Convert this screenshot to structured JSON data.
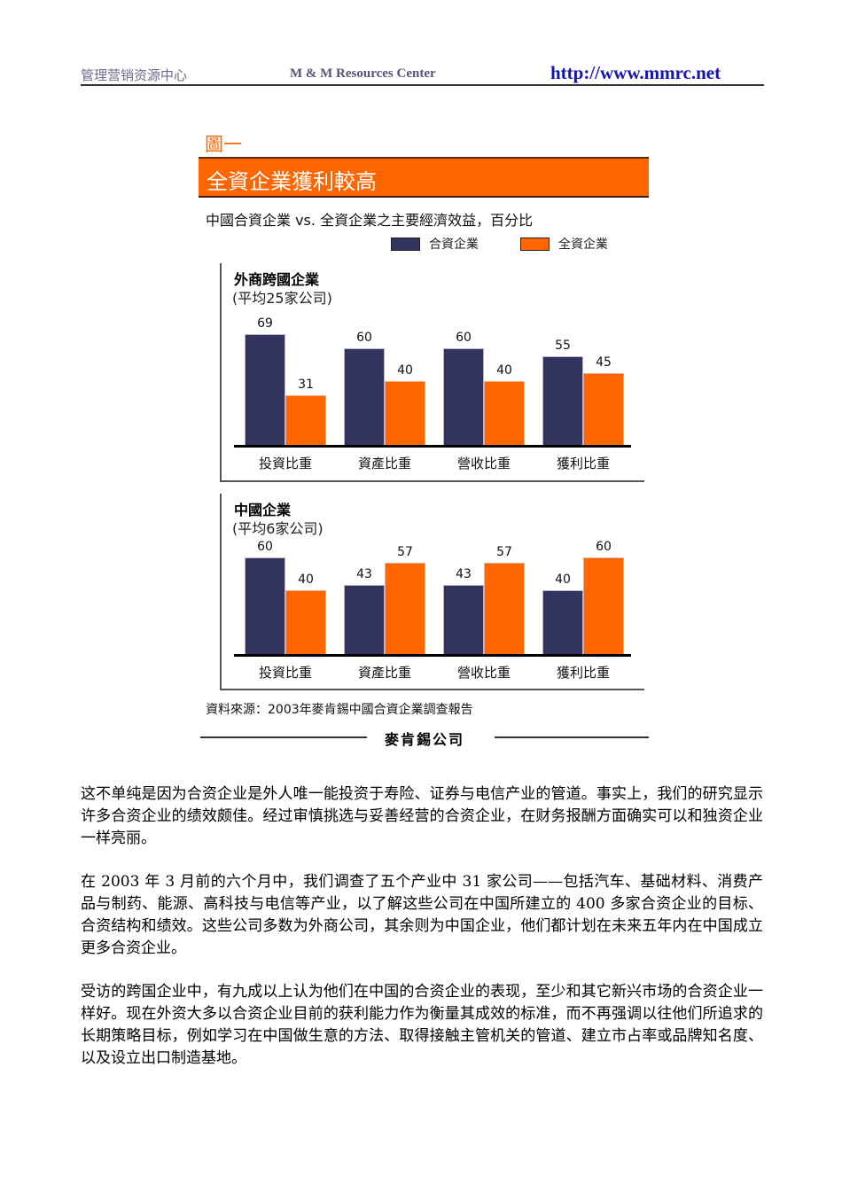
{
  "header": {
    "left": "管理营销资源中心",
    "center": "M & M Resources Center",
    "right": "http://www.mmrc.net"
  },
  "figure": {
    "label": "圖一",
    "banner": "全資企業獲利較高",
    "subtitle": "中國合資企業 vs. 全資企業之主要經濟效益，百分比",
    "legend": [
      {
        "label": "合資企業",
        "color": "#33335f"
      },
      {
        "label": "全資企業",
        "color": "#ff6600"
      }
    ],
    "source": "資料來源：2003年麥肯錫中國合資企業調查報告",
    "signature": "麥肯錫公司"
  },
  "chart_data": [
    {
      "type": "bar",
      "title": "外商跨國企業",
      "subtitle": "(平均25家公司)",
      "categories": [
        "投資比重",
        "資產比重",
        "營收比重",
        "獲利比重"
      ],
      "series": [
        {
          "name": "合資企業",
          "values": [
            69,
            60,
            60,
            55
          ]
        },
        {
          "name": "全資企業",
          "values": [
            31,
            40,
            40,
            45
          ]
        }
      ],
      "xlabel": "",
      "ylabel": "百分比",
      "ylim": [
        0,
        100
      ],
      "grid": false,
      "legend_position": "top-right"
    },
    {
      "type": "bar",
      "title": "中國企業",
      "subtitle": "(平均6家公司)",
      "categories": [
        "投資比重",
        "資產比重",
        "營收比重",
        "獲利比重"
      ],
      "series": [
        {
          "name": "合資企業",
          "values": [
            60,
            43,
            43,
            40
          ]
        },
        {
          "name": "全資企業",
          "values": [
            40,
            57,
            57,
            60
          ]
        }
      ],
      "xlabel": "",
      "ylabel": "百分比",
      "ylim": [
        0,
        100
      ],
      "grid": false,
      "legend_position": "top-right"
    }
  ],
  "paragraphs": [
    "这不单纯是因为合资企业是外人唯一能投资于寿险、证券与电信产业的管道。事实上，我们的研究显示许多合资企业的绩效颇佳。经过审慎挑选与妥善经营的合资企业，在财务报酬方面确实可以和独资企业一样亮丽。",
    "在 2003 年 3 月前的六个月中，我们调查了五个产业中 31 家公司——包括汽车、基础材料、消费产品与制药、能源、高科技与电信等产业，以了解这些公司在中国所建立的 400 多家合资企业的目标、合资结构和绩效。这些公司多数为外商公司，其余则为中国企业，他们都计划在未来五年内在中国成立更多合资企业。",
    "受访的跨国企业中，有九成以上认为他们在中国的合资企业的表现，至少和其它新兴市场的合资企业一样好。现在外资大多以合资企业目前的获利能力作为衡量其成效的标准，而不再强调以往他们所追求的长期策略目标，例如学习在中国做生意的方法、取得接触主管机关的管道、建立市占率或品牌知名度、以及设立出口制造基地。"
  ]
}
